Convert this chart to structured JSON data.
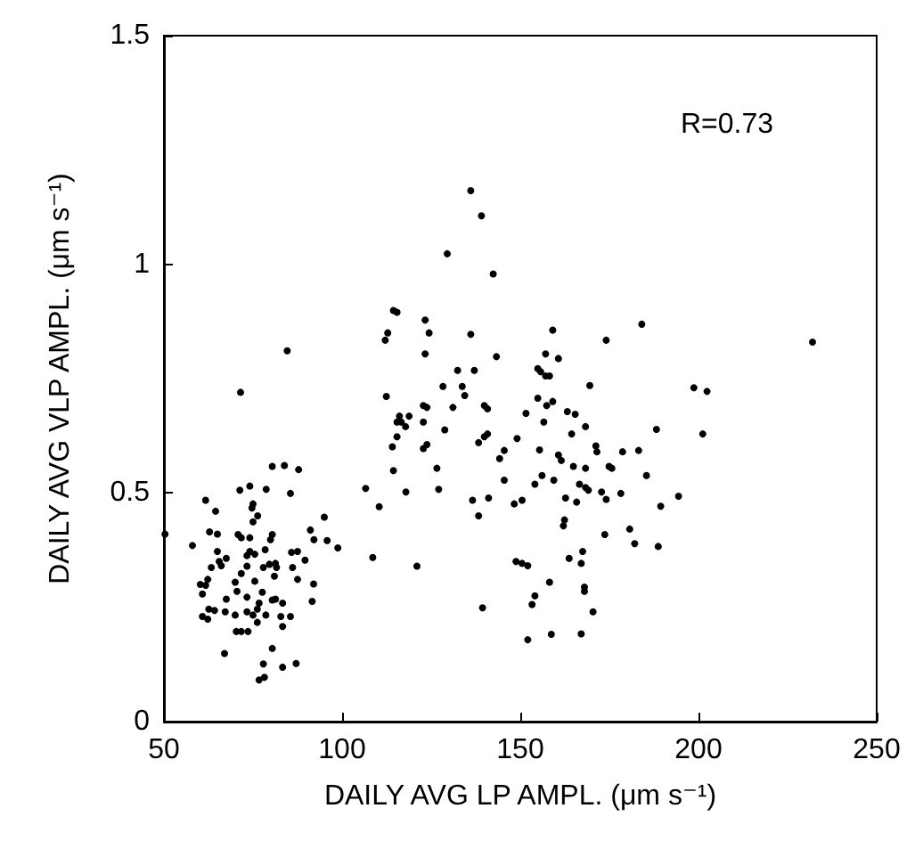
{
  "chart_data": {
    "type": "scatter",
    "xlabel": "DAILY AVG LP AMPL. (μm s⁻¹)",
    "ylabel": "DAILY AVG VLP AMPL. (μm s⁻¹)",
    "annotations": [
      "R=0.73"
    ],
    "xlim": [
      50,
      250
    ],
    "xticks": [
      50,
      100,
      150,
      200,
      250
    ],
    "ylim": [
      0,
      1.5
    ],
    "yticks": [
      0,
      0.5,
      1,
      1.5
    ],
    "grid": false,
    "marker": "circle",
    "series": [
      {
        "color": "#000000",
        "x": [
          50.3,
          58,
          61.7,
          64.5,
          62.8,
          65,
          60.2,
          61.7,
          60.8,
          62.3,
          63.3,
          65.5,
          66.1,
          67.5,
          65,
          60.8,
          62.3,
          62.6,
          64.2,
          67,
          67.5,
          67.2,
          70,
          70.5,
          71.3,
          71.5,
          70.8,
          71.7,
          70,
          70.3,
          71.7,
          71.7,
          74.1,
          75,
          74.7,
          75,
          76.3,
          74.1,
          74.1,
          75.5,
          73.3,
          73.3,
          75.5,
          73.3,
          73.3,
          75,
          73.6,
          76.2,
          76.7,
          76.2,
          76.7,
          78.2,
          77.9,
          77.6,
          77.9,
          78.4,
          78.7,
          80.4,
          80.4,
          79.9,
          79.6,
          81,
          80.4,
          81.3,
          78.6,
          81.3,
          81.6,
          80.4,
          83.3,
          82.8,
          83.3,
          83.3,
          83.8,
          84.6,
          85.5,
          85.5,
          85.8,
          86.1,
          87.1,
          87.8,
          87.5,
          87.5,
          89.6,
          91.1,
          92.1,
          92,
          91.6,
          95,
          95.8,
          98.8,
          106.6,
          110.4,
          108.6,
          112.1,
          112.8,
          112.4,
          114.4,
          115.4,
          114.1,
          114.4,
          115.4,
          115.4,
          116.1,
          116.6,
          117.8,
          118.8,
          117.9,
          121,
          122.8,
          123.3,
          123.8,
          123.3,
          124.4,
          122.8,
          122.8,
          123.8,
          126.6,
          127.1,
          128.3,
          128.8,
          129.5,
          131.1,
          132.4,
          133.7,
          134.4,
          136.1,
          136.1,
          136.6,
          137.1,
          138.3,
          139.1,
          139.4,
          139.9,
          140.8,
          141.1,
          138.3,
          139.9,
          140.8,
          142.4,
          143.3,
          144.2,
          145.5,
          145.5,
          148.3,
          149.1,
          148.8,
          150.5,
          150.5,
          151.6,
          152.1,
          152.1,
          153.3,
          154.1,
          154.1,
          154.9,
          155.4,
          154.9,
          155.7,
          156.6,
          156.1,
          157.1,
          157.1,
          158.2,
          157.4,
          158.2,
          158.7,
          159.1,
          159.1,
          159.4,
          160.7,
          160.7,
          161.5,
          162.1,
          162.4,
          162.7,
          163.2,
          163.7,
          164.4,
          164.9,
          165.4,
          165.8,
          166.6,
          167.1,
          167.1,
          167.5,
          168,
          168,
          168.3,
          168.3,
          168.3,
          169.1,
          169.5,
          170.4,
          171.2,
          171.5,
          172.8,
          173.7,
          174.1,
          174.1,
          174.9,
          175.7,
          178.2,
          178.7,
          180.7,
          182.1,
          183.2,
          184.1,
          185.4,
          188.2,
          188.7,
          189.4,
          194.4,
          198.7,
          202.4,
          201.2,
          232
        ],
        "values": [
          0.41,
          0.385,
          0.484,
          0.46,
          0.415,
          0.41,
          0.3,
          0.298,
          0.279,
          0.311,
          0.337,
          0.35,
          0.341,
          0.357,
          0.372,
          0.23,
          0.224,
          0.246,
          0.243,
          0.149,
          0.268,
          0.24,
          0.305,
          0.285,
          0.506,
          0.72,
          0.409,
          0.402,
          0.233,
          0.197,
          0.197,
          0.324,
          0.515,
          0.476,
          0.467,
          0.437,
          0.45,
          0.402,
          0.372,
          0.366,
          0.363,
          0.34,
          0.307,
          0.272,
          0.24,
          0.233,
          0.197,
          0.246,
          0.259,
          0.217,
          0.091,
          0.097,
          0.126,
          0.283,
          0.337,
          0.376,
          0.508,
          0.558,
          0.409,
          0.398,
          0.344,
          0.318,
          0.266,
          0.268,
          0.233,
          0.346,
          0.337,
          0.16,
          0.259,
          0.23,
          0.208,
          0.119,
          0.56,
          0.811,
          0.499,
          0.23,
          0.37,
          0.337,
          0.127,
          0.551,
          0.311,
          0.372,
          0.353,
          0.419,
          0.398,
          0.301,
          0.263,
          0.447,
          0.396,
          0.38,
          0.51,
          0.47,
          0.359,
          0.834,
          0.85,
          0.711,
          0.899,
          0.895,
          0.601,
          0.549,
          0.623,
          0.655,
          0.668,
          0.655,
          0.645,
          0.668,
          0.502,
          0.34,
          0.691,
          0.878,
          0.687,
          0.804,
          0.85,
          0.655,
          0.597,
          0.606,
          0.554,
          0.508,
          0.733,
          0.638,
          1.023,
          0.687,
          0.768,
          0.733,
          0.713,
          1.161,
          0.847,
          0.484,
          0.768,
          0.45,
          1.106,
          0.249,
          0.691,
          0.684,
          0.489,
          0.61,
          0.623,
          0.629,
          0.979,
          0.798,
          0.575,
          0.593,
          0.528,
          0.476,
          0.619,
          0.35,
          0.346,
          0.484,
          0.674,
          0.341,
          0.179,
          0.256,
          0.275,
          0.519,
          0.707,
          0.594,
          0.772,
          0.765,
          0.655,
          0.538,
          0.804,
          0.756,
          0.756,
          0.691,
          0.305,
          0.191,
          0.856,
          0.7,
          0.528,
          0.794,
          0.583,
          0.571,
          0.428,
          0.441,
          0.489,
          0.678,
          0.357,
          0.629,
          0.558,
          0.672,
          0.48,
          0.519,
          0.192,
          0.346,
          0.372,
          0.294,
          0.285,
          0.645,
          0.554,
          0.512,
          0.506,
          0.735,
          0.24,
          0.603,
          0.59,
          0.502,
          0.409,
          0.834,
          0.486,
          0.558,
          0.554,
          0.499,
          0.59,
          0.421,
          0.389,
          0.593,
          0.869,
          0.538,
          0.639,
          0.383,
          0.471,
          0.493,
          0.73,
          0.722,
          0.629,
          0.83
        ]
      }
    ]
  }
}
